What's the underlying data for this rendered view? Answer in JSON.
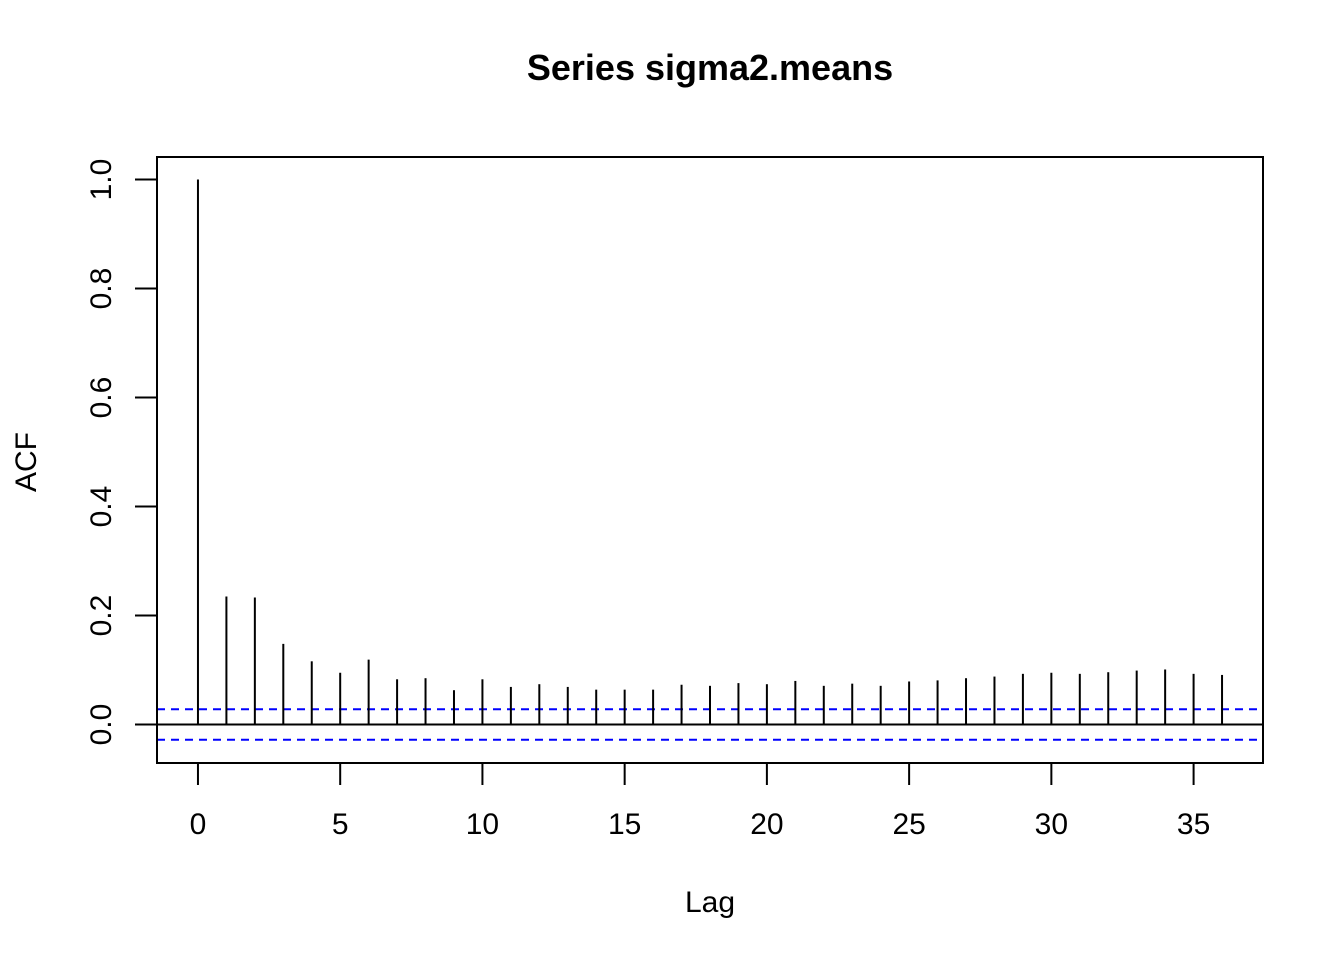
{
  "chart_data": {
    "type": "bar",
    "title": "Series  sigma2.means",
    "xlabel": "Lag",
    "ylabel": "ACF",
    "xlim": [
      -1.44,
      37.44
    ],
    "ylim": [
      -0.0706,
      1.0414
    ],
    "x_ticks": [
      0,
      5,
      10,
      15,
      20,
      25,
      30,
      35
    ],
    "x_tick_labels": [
      "0",
      "5",
      "10",
      "15",
      "20",
      "25",
      "30",
      "35"
    ],
    "y_ticks": [
      0.0,
      0.2,
      0.4,
      0.6,
      0.8,
      1.0
    ],
    "y_tick_labels": [
      "0.0",
      "0.2",
      "0.4",
      "0.6",
      "0.8",
      "1.0"
    ],
    "lags": [
      0,
      1,
      2,
      3,
      4,
      5,
      6,
      7,
      8,
      9,
      10,
      11,
      12,
      13,
      14,
      15,
      16,
      17,
      18,
      19,
      20,
      21,
      22,
      23,
      24,
      25,
      26,
      27,
      28,
      29,
      30,
      31,
      32,
      33,
      34,
      35,
      36
    ],
    "acf": [
      1.0,
      0.235,
      0.233,
      0.148,
      0.116,
      0.095,
      0.119,
      0.083,
      0.085,
      0.063,
      0.083,
      0.069,
      0.074,
      0.069,
      0.064,
      0.064,
      0.064,
      0.073,
      0.071,
      0.076,
      0.074,
      0.08,
      0.071,
      0.075,
      0.071,
      0.079,
      0.081,
      0.085,
      0.088,
      0.093,
      0.095,
      0.093,
      0.096,
      0.099,
      0.101,
      0.093,
      0.091
    ],
    "confidence_bound": 0.028,
    "colors": {
      "spike": "#000000",
      "zero_line": "#000000",
      "ci_line": "#0000ff",
      "frame": "#000000"
    }
  }
}
